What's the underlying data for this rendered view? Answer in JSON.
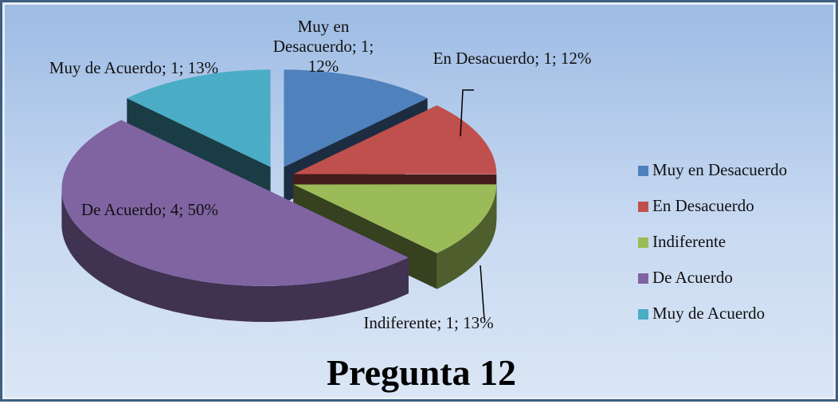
{
  "chart_data": {
    "type": "pie3d",
    "title": "Pregunta 12",
    "categories": [
      "Muy en Desacuerdo",
      "En Desacuerdo",
      "Indiferente",
      "De Acuerdo",
      "Muy de Acuerdo"
    ],
    "values": [
      1,
      1,
      1,
      4,
      1
    ],
    "value_labels": [
      "Muy en Desacuerdo; 1; 12%",
      "En Desacuerdo; 1; 12%",
      "Indiferente; 1; 13%",
      "De Acuerdo; 4; 50%",
      "Muy de Acuerdo; 1; 13%"
    ],
    "colors": [
      "#4f81bd",
      "#c0504d",
      "#9bbb59",
      "#8064a2",
      "#4bacc6"
    ],
    "legend": "right"
  }
}
